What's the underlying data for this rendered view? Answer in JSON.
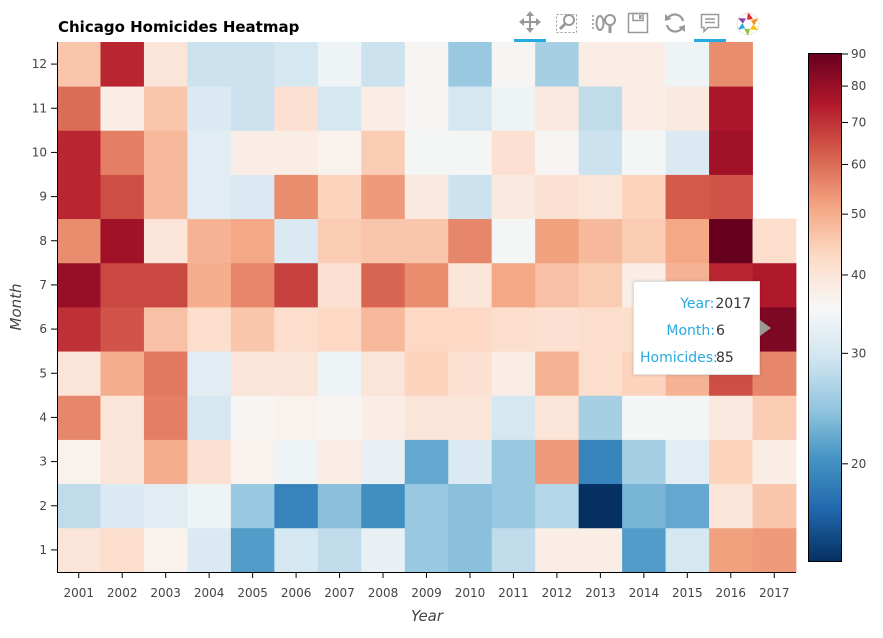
{
  "toolbar": {
    "tools": [
      {
        "name": "pan-tool",
        "icon": "move-arrows-icon",
        "active": true
      },
      {
        "name": "box-zoom-tool",
        "icon": "box-zoom-icon",
        "active": false
      },
      {
        "name": "wheel-zoom-tool",
        "icon": "wheel-zoom-icon",
        "active": false
      },
      {
        "name": "save-tool",
        "icon": "save-icon",
        "active": false
      },
      {
        "name": "reset-tool",
        "icon": "reset-icon",
        "active": false
      },
      {
        "name": "hover-tool",
        "icon": "hover-tooltip-icon",
        "active": true
      },
      {
        "name": "bokeh-logo",
        "icon": "bokeh-logo-icon",
        "active": false
      }
    ]
  },
  "tooltip": {
    "rows": [
      {
        "label": "Year:",
        "value": "2017"
      },
      {
        "label": "Month:",
        "value": "6"
      },
      {
        "label": "Homicides:",
        "value": "85"
      }
    ]
  },
  "chart_data": {
    "type": "heatmap",
    "title": "Chicago Homicides Heatmap",
    "xlabel": "Year",
    "ylabel": "Month",
    "x": [
      "2001",
      "2002",
      "2003",
      "2004",
      "2005",
      "2006",
      "2007",
      "2008",
      "2009",
      "2010",
      "2011",
      "2012",
      "2013",
      "2014",
      "2015",
      "2016",
      "2017"
    ],
    "y": [
      "1",
      "2",
      "3",
      "4",
      "5",
      "6",
      "7",
      "8",
      "9",
      "10",
      "11",
      "12"
    ],
    "colorbar": {
      "scale": "log",
      "palette": "RdBu (reversed)",
      "range": [
        14,
        90
      ],
      "ticks": [
        20,
        30,
        40,
        50,
        60,
        70,
        80,
        90
      ]
    },
    "values": [
      [
        40,
        42,
        37,
        31,
        21,
        30,
        28,
        33,
        25,
        24,
        28,
        38,
        38,
        21,
        30,
        52,
        53
      ],
      [
        28,
        31,
        32,
        34,
        25,
        19,
        24,
        20,
        25,
        24,
        25,
        27,
        14,
        23,
        22,
        40,
        46
      ],
      [
        37,
        40,
        50,
        41,
        37,
        34,
        38,
        33,
        22,
        31,
        25,
        53,
        19,
        26,
        32,
        44,
        38
      ],
      [
        56,
        40,
        57,
        30,
        36,
        37,
        36,
        38,
        40,
        40,
        30,
        40,
        26,
        35,
        35,
        39,
        45
      ],
      [
        40,
        50,
        58,
        32,
        40,
        40,
        34,
        40,
        44,
        41,
        38,
        49,
        42,
        44,
        49,
        65,
        56
      ],
      [
        70,
        64,
        47,
        42,
        46,
        42,
        43,
        48,
        43,
        43,
        42,
        41,
        42,
        42,
        45,
        55,
        85
      ],
      [
        80,
        66,
        66,
        50,
        56,
        67,
        41,
        61,
        55,
        40,
        51,
        47,
        45,
        38,
        49,
        72,
        75
      ],
      [
        55,
        78,
        40,
        49,
        51,
        31,
        45,
        46,
        46,
        56,
        35,
        52,
        48,
        45,
        51,
        90,
        42
      ],
      [
        72,
        65,
        48,
        32,
        31,
        55,
        44,
        53,
        39,
        29,
        39,
        41,
        40,
        44,
        63,
        64,
        null
      ],
      [
        72,
        57,
        48,
        32,
        38,
        38,
        37,
        45,
        35,
        35,
        41,
        36,
        29,
        35,
        31,
        78,
        null
      ],
      [
        60,
        38,
        46,
        31,
        29,
        41,
        30,
        38,
        36,
        30,
        34,
        39,
        28,
        38,
        39,
        76,
        null
      ],
      [
        46,
        72,
        40,
        29,
        29,
        30,
        34,
        29,
        36,
        25,
        36,
        26,
        38,
        38,
        34,
        55,
        null
      ]
    ]
  }
}
